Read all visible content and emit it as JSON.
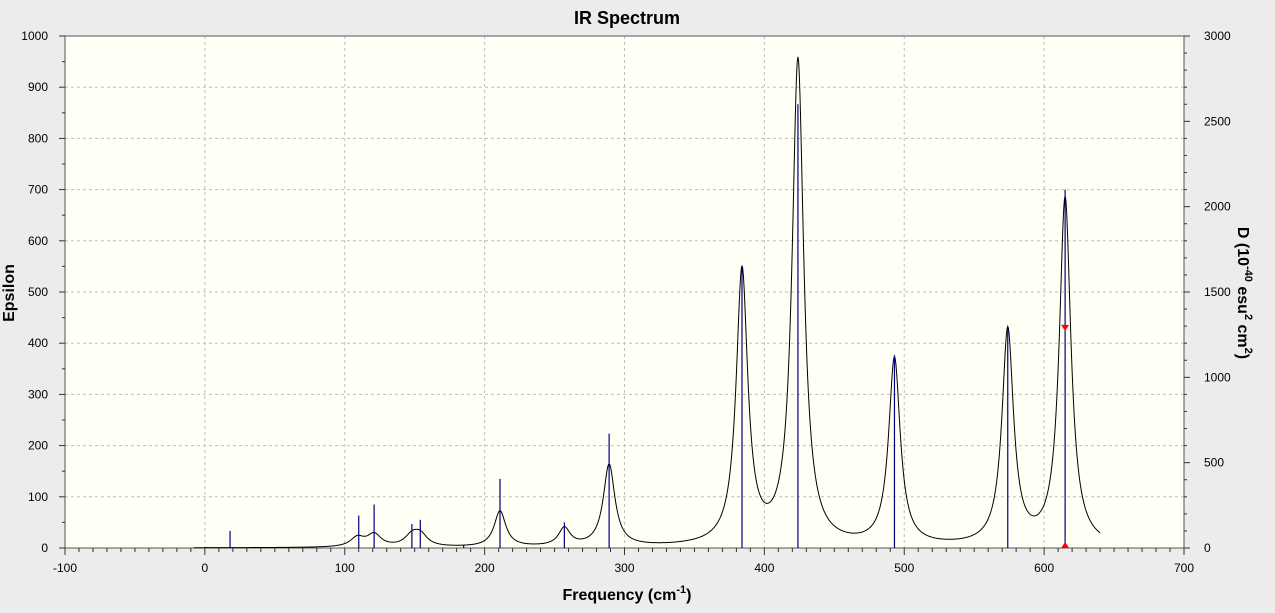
{
  "chart_data": {
    "type": "line",
    "title": "IR Spectrum",
    "xlabel": {
      "main": "Frequency (cm",
      "sup": "-1",
      "tail": ")"
    },
    "ylabel_left": "Epsilon",
    "ylabel_right": {
      "p1": "D (10",
      "s1": "-40",
      "p2": " esu",
      "s2": "2",
      "p3": " cm",
      "s3": "2",
      "p4": ")"
    },
    "xlim": [
      -100,
      700
    ],
    "ylim_left": [
      0,
      1000
    ],
    "ylim_right": [
      0,
      3000
    ],
    "x_ticks": [
      "-100",
      "0",
      "100",
      "200",
      "300",
      "400",
      "500",
      "600",
      "700"
    ],
    "y_left_ticks": [
      "0",
      "100",
      "200",
      "300",
      "400",
      "500",
      "600",
      "700",
      "800",
      "900",
      "1000"
    ],
    "y_right_ticks": [
      "0",
      "500",
      "1000",
      "1500",
      "2000",
      "2500",
      "3000"
    ],
    "grid": true,
    "series": [
      {
        "kind": "spectrum",
        "axis": "left",
        "color": "#000000",
        "x_range": [
          -8,
          640
        ],
        "peaks": [
          {
            "x": 109,
            "height": 18,
            "width": 6
          },
          {
            "x": 121,
            "height": 24,
            "width": 6
          },
          {
            "x": 148,
            "height": 20,
            "width": 6
          },
          {
            "x": 154,
            "height": 22,
            "width": 6
          },
          {
            "x": 211,
            "height": 70,
            "width": 5
          },
          {
            "x": 257,
            "height": 35,
            "width": 5
          },
          {
            "x": 289,
            "height": 160,
            "width": 5
          },
          {
            "x": 384,
            "height": 535,
            "width": 5
          },
          {
            "x": 424,
            "height": 948,
            "width": 5
          },
          {
            "x": 493,
            "height": 365,
            "width": 5
          },
          {
            "x": 574,
            "height": 420,
            "width": 5
          },
          {
            "x": 615,
            "height": 680,
            "width": 5
          }
        ]
      },
      {
        "kind": "sticks",
        "axis": "right",
        "color": "#000080",
        "x": [
          18,
          110,
          121,
          148,
          154,
          185,
          211,
          257,
          289,
          384,
          424,
          493,
          574,
          615
        ],
        "values": [
          100,
          190,
          255,
          140,
          165,
          15,
          405,
          150,
          670,
          1640,
          2600,
          1130,
          1295,
          2100
        ]
      }
    ],
    "markers": [
      {
        "x": 615,
        "y_left": 430,
        "direction": "down",
        "color": "#ff0000"
      },
      {
        "x": 615,
        "y_left": 0,
        "direction": "up",
        "color": "#ff0000"
      }
    ]
  }
}
